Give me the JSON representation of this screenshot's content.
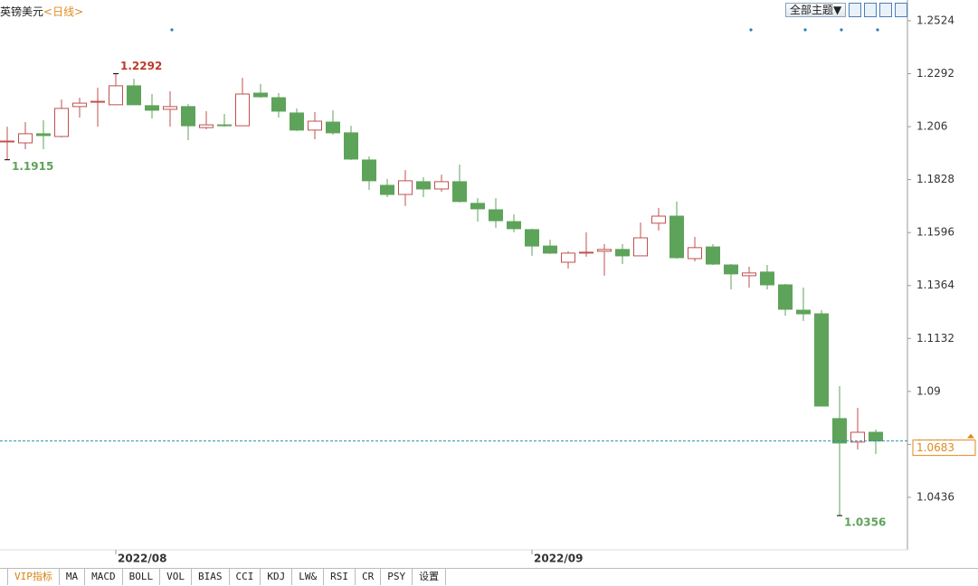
{
  "chart_data": {
    "type": "candlestick",
    "title": "英镑美元",
    "subtitle": "<日线>",
    "categories": [
      null,
      null,
      null,
      null,
      null,
      null,
      "2022/08",
      null,
      null,
      null,
      null,
      null,
      null,
      null,
      null,
      null,
      null,
      null,
      null,
      null,
      null,
      null,
      null,
      null,
      null,
      null,
      null,
      null,
      null,
      "2022/09",
      null,
      null,
      null,
      null,
      null,
      null,
      null,
      null,
      null,
      null,
      null,
      null,
      null,
      null,
      null,
      null,
      null,
      null,
      null
    ],
    "open": [
      1.1993,
      1.1989,
      1.2029,
      1.2017,
      1.2148,
      1.2167,
      1.2156,
      1.2239,
      1.2152,
      1.2136,
      1.2148,
      1.2056,
      1.2068,
      1.2064,
      1.2207,
      1.2187,
      1.212,
      1.2045,
      1.208,
      1.2033,
      1.1914,
      1.1803,
      1.1763,
      1.1819,
      1.1787,
      1.1819,
      1.1724,
      1.1696,
      1.1644,
      1.1609,
      1.1537,
      1.1466,
      1.1506,
      1.1514,
      1.1522,
      1.1494,
      1.1637,
      1.1668,
      1.1482,
      1.1533,
      1.1454,
      1.1407,
      1.1423,
      1.1367,
      1.1256,
      1.124,
      1.0781,
      1.0678,
      1.0721
    ],
    "high": [
      1.206,
      1.208,
      1.2088,
      1.2179,
      1.2187,
      1.2231,
      1.2292,
      1.227,
      1.2203,
      1.2215,
      1.2159,
      1.2128,
      1.2116,
      1.2274,
      1.2247,
      1.2207,
      1.214,
      1.2124,
      1.2132,
      1.2064,
      1.193,
      1.1831,
      1.187,
      1.1839,
      1.185,
      1.1894,
      1.1747,
      1.1747,
      1.1676,
      1.1613,
      1.1565,
      1.1514,
      1.1597,
      1.1545,
      1.1545,
      1.164,
      1.1704,
      1.1732,
      1.1577,
      1.1545,
      1.1458,
      1.1446,
      1.1454,
      1.1371,
      1.1355,
      1.1256,
      1.0923,
      1.0828,
      1.0733
    ],
    "low": [
      1.1915,
      1.1961,
      1.1961,
      1.2013,
      1.21,
      1.206,
      1.2156,
      1.2156,
      1.2096,
      1.206,
      1.2001,
      1.2049,
      1.206,
      1.2064,
      1.2187,
      1.21,
      1.2041,
      1.2005,
      1.2025,
      1.1914,
      1.1783,
      1.1751,
      1.1712,
      1.1751,
      1.1775,
      1.1728,
      1.1644,
      1.1617,
      1.1597,
      1.1494,
      1.1502,
      1.1438,
      1.149,
      1.1407,
      1.1458,
      1.1494,
      1.1605,
      1.1482,
      1.147,
      1.1454,
      1.1347,
      1.1355,
      1.1347,
      1.1232,
      1.1209,
      1.0836,
      1.0356,
      1.0646,
      1.0626
    ],
    "close": [
      1.1997,
      1.2029,
      1.2021,
      1.214,
      1.2163,
      1.2171,
      1.2239,
      1.2156,
      1.2132,
      1.2148,
      1.2064,
      1.2068,
      1.2064,
      1.2203,
      1.2191,
      1.2128,
      1.2045,
      1.2084,
      1.2033,
      1.1918,
      1.1823,
      1.1763,
      1.1823,
      1.1787,
      1.1819,
      1.1732,
      1.17,
      1.1648,
      1.1613,
      1.1537,
      1.1506,
      1.1506,
      1.151,
      1.1522,
      1.1494,
      1.1573,
      1.1668,
      1.1486,
      1.153,
      1.1458,
      1.1415,
      1.1419,
      1.1367,
      1.126,
      1.124,
      1.0836,
      1.0674,
      1.0721,
      1.0683
    ],
    "up_color": "#c0504d",
    "down_color": "#5ea35a",
    "ylim": [
      1.0206,
      1.2615
    ],
    "yticks": [
      1.2524,
      1.2292,
      1.206,
      1.1828,
      1.1596,
      1.1364,
      1.1132,
      1.09,
      1.0668,
      1.0436
    ],
    "grid": false,
    "highlights": [
      {
        "field": "high",
        "index": 6,
        "color": "#c0392b"
      },
      {
        "field": "low",
        "index": 0,
        "color": "#5ea35a"
      },
      {
        "field": "low",
        "index": 46,
        "color": "#5ea35a"
      }
    ],
    "last_price": {
      "field": "close",
      "index": 48,
      "color": "#e08a1e",
      "line_color": "#2a8fb8"
    }
  },
  "toolbar": {
    "theme_button": "全部主题▼"
  },
  "tabs": [
    "VIP指标",
    "MA",
    "MACD",
    "BOLL",
    "VOL",
    "BIAS",
    "CCI",
    "KDJ",
    "LW&",
    "RSI",
    "CR",
    "PSY",
    "设置"
  ]
}
